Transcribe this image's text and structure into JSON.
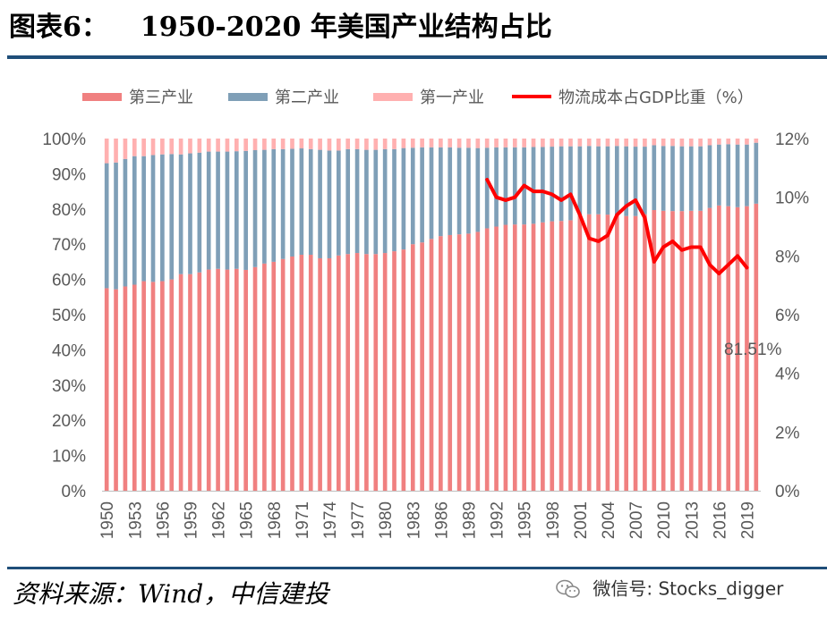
{
  "header": {
    "figure_label": "图表6：",
    "title": "1950-2020 年美国产业结构占比"
  },
  "footer": {
    "source": "资料来源：Wind，中信建投",
    "watermark": "微信号: Stocks_digger",
    "watermark_icon": "wechat-icon"
  },
  "chart_data": {
    "type": "bar",
    "stacked": true,
    "x_years": [
      1950,
      1951,
      1952,
      1953,
      1954,
      1955,
      1956,
      1957,
      1958,
      1959,
      1960,
      1961,
      1962,
      1963,
      1964,
      1965,
      1966,
      1967,
      1968,
      1969,
      1970,
      1971,
      1972,
      1973,
      1974,
      1975,
      1976,
      1977,
      1978,
      1979,
      1980,
      1981,
      1982,
      1983,
      1984,
      1985,
      1986,
      1987,
      1988,
      1989,
      1990,
      1991,
      1992,
      1993,
      1994,
      1995,
      1996,
      1997,
      1998,
      1999,
      2000,
      2001,
      2002,
      2003,
      2004,
      2005,
      2006,
      2007,
      2008,
      2009,
      2010,
      2011,
      2012,
      2013,
      2014,
      2015,
      2016,
      2017,
      2018,
      2019,
      2020
    ],
    "x_tick_labels": [
      "1950",
      "1953",
      "1956",
      "1959",
      "1962",
      "1965",
      "1968",
      "1971",
      "1974",
      "1977",
      "1980",
      "1983",
      "1986",
      "1989",
      "1992",
      "1995",
      "1998",
      "2001",
      "2004",
      "2007",
      "2010",
      "2013",
      "2016",
      "2019"
    ],
    "series": [
      {
        "name": "第三产业",
        "color": "#f08080",
        "axis": "left",
        "values": [
          57.5,
          57.2,
          58.0,
          58.5,
          59.5,
          59.3,
          59.5,
          60.0,
          61.5,
          61.5,
          62.0,
          62.8,
          63.0,
          62.8,
          63.0,
          62.7,
          63.5,
          64.5,
          65.0,
          65.8,
          66.5,
          67.0,
          67.0,
          66.0,
          66.0,
          66.8,
          67.2,
          67.5,
          67.2,
          67.2,
          67.5,
          68.0,
          68.5,
          70.0,
          70.5,
          71.5,
          72.3,
          72.6,
          72.8,
          73.0,
          73.5,
          74.5,
          75.0,
          75.5,
          75.6,
          75.6,
          75.8,
          76.2,
          76.5,
          76.6,
          76.8,
          78.0,
          78.5,
          78.5,
          78.4,
          78.3,
          78.0,
          78.0,
          78.5,
          79.7,
          79.5,
          79.4,
          79.4,
          79.5,
          79.5,
          80.3,
          81.0,
          80.8,
          80.5,
          80.8,
          81.51
        ]
      },
      {
        "name": "第二产业",
        "color": "#7f9fb7",
        "axis": "left",
        "values": [
          35.5,
          36.0,
          36.2,
          36.5,
          35.5,
          36.0,
          36.0,
          35.6,
          34.0,
          34.3,
          34.0,
          33.5,
          33.3,
          33.5,
          33.4,
          33.8,
          33.2,
          32.3,
          32.0,
          31.2,
          30.6,
          30.2,
          30.0,
          30.8,
          30.6,
          29.8,
          29.8,
          29.5,
          29.6,
          29.6,
          29.5,
          29.0,
          28.8,
          27.4,
          27.0,
          26.0,
          25.2,
          24.9,
          24.6,
          24.4,
          23.8,
          22.9,
          22.5,
          22.0,
          21.9,
          21.9,
          21.8,
          21.4,
          21.2,
          21.2,
          21.0,
          19.8,
          19.4,
          19.3,
          19.4,
          19.6,
          19.8,
          19.7,
          19.2,
          18.4,
          18.4,
          18.5,
          18.4,
          18.3,
          18.3,
          17.8,
          17.3,
          17.6,
          17.8,
          17.5,
          17.3
        ]
      },
      {
        "name": "第一产业",
        "color": "#ffb0b0",
        "axis": "left",
        "values": [
          7.0,
          6.8,
          5.8,
          5.0,
          5.0,
          4.7,
          4.5,
          4.4,
          4.5,
          4.2,
          4.0,
          3.7,
          3.7,
          3.7,
          3.6,
          3.5,
          3.3,
          3.2,
          3.0,
          3.0,
          2.9,
          2.8,
          3.0,
          3.2,
          3.4,
          3.4,
          3.0,
          3.0,
          3.2,
          3.2,
          3.0,
          3.0,
          2.7,
          2.6,
          2.5,
          2.5,
          2.5,
          2.5,
          2.6,
          2.6,
          2.7,
          2.6,
          2.5,
          2.5,
          2.5,
          2.5,
          2.4,
          2.4,
          2.3,
          2.2,
          2.2,
          2.2,
          2.1,
          2.2,
          2.2,
          2.1,
          2.2,
          2.3,
          2.3,
          1.9,
          2.1,
          2.1,
          2.2,
          2.2,
          2.2,
          1.9,
          1.7,
          1.6,
          1.7,
          1.7,
          1.19
        ]
      },
      {
        "name": "物流成本占GDP比重（%）",
        "type": "line",
        "color": "#ff0000",
        "axis": "right",
        "x": [
          1991,
          1992,
          1993,
          1994,
          1995,
          1996,
          1997,
          1998,
          1999,
          2000,
          2001,
          2002,
          2003,
          2004,
          2005,
          2006,
          2007,
          2008,
          2009,
          2010,
          2011,
          2012,
          2013,
          2014,
          2015,
          2016,
          2017,
          2018,
          2019
        ],
        "values": [
          10.6,
          10.0,
          9.9,
          10.0,
          10.4,
          10.2,
          10.2,
          10.1,
          9.9,
          10.1,
          9.4,
          8.6,
          8.5,
          8.7,
          9.4,
          9.7,
          9.9,
          9.3,
          7.8,
          8.3,
          8.5,
          8.2,
          8.3,
          8.3,
          7.7,
          7.4,
          7.7,
          8.0,
          7.6
        ]
      }
    ],
    "annotation": "81.51%",
    "left_axis": {
      "ylim": [
        0,
        100
      ],
      "ticks": [
        0,
        10,
        20,
        30,
        40,
        50,
        60,
        70,
        80,
        90,
        100
      ],
      "tick_labels": [
        "0%",
        "10%",
        "20%",
        "30%",
        "40%",
        "50%",
        "60%",
        "70%",
        "80%",
        "90%",
        "100%"
      ]
    },
    "right_axis": {
      "ylim": [
        0,
        12
      ],
      "ticks": [
        0,
        2,
        4,
        6,
        8,
        10,
        12
      ],
      "tick_labels": [
        "0%",
        "2%",
        "4%",
        "6%",
        "8%",
        "10%",
        "12%"
      ]
    },
    "legend_position": "top",
    "grid": false
  }
}
